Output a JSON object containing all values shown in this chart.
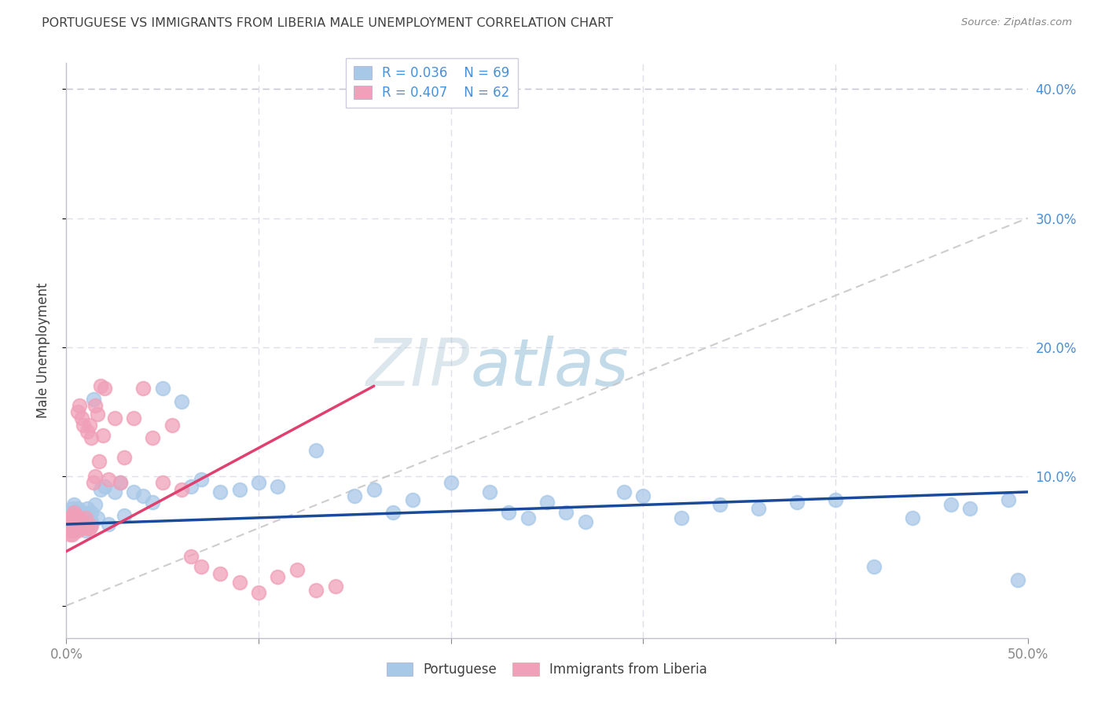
{
  "title": "PORTUGUESE VS IMMIGRANTS FROM LIBERIA MALE UNEMPLOYMENT CORRELATION CHART",
  "source": "Source: ZipAtlas.com",
  "ylabel": "Male Unemployment",
  "xlim": [
    0.0,
    0.5
  ],
  "ylim": [
    -0.025,
    0.42
  ],
  "watermark_zip": "ZIP",
  "watermark_atlas": "atlas",
  "legend1_r": "R = 0.036",
  "legend1_n": "N = 69",
  "legend2_r": "R = 0.407",
  "legend2_n": "N = 62",
  "blue_scatter_color": "#a8c8e8",
  "pink_scatter_color": "#f0a0b8",
  "blue_line_color": "#1a4a9a",
  "pink_line_color": "#e04070",
  "dashed_line_color": "#c8c8c8",
  "title_color": "#404040",
  "ylabel_color": "#404040",
  "tick_color_right": "#4a90d9",
  "grid_color": "#d8d8e8",
  "background_color": "#ffffff",
  "port_x": [
    0.001,
    0.002,
    0.002,
    0.003,
    0.003,
    0.003,
    0.004,
    0.004,
    0.004,
    0.005,
    0.005,
    0.005,
    0.006,
    0.006,
    0.007,
    0.007,
    0.008,
    0.009,
    0.01,
    0.01,
    0.011,
    0.012,
    0.013,
    0.013,
    0.014,
    0.015,
    0.016,
    0.018,
    0.02,
    0.022,
    0.025,
    0.028,
    0.03,
    0.035,
    0.04,
    0.045,
    0.05,
    0.06,
    0.065,
    0.07,
    0.08,
    0.09,
    0.1,
    0.11,
    0.13,
    0.15,
    0.16,
    0.17,
    0.18,
    0.2,
    0.22,
    0.23,
    0.24,
    0.25,
    0.26,
    0.27,
    0.29,
    0.3,
    0.32,
    0.34,
    0.36,
    0.38,
    0.4,
    0.42,
    0.44,
    0.46,
    0.47,
    0.49,
    0.495
  ],
  "port_y": [
    0.063,
    0.068,
    0.072,
    0.065,
    0.058,
    0.075,
    0.06,
    0.07,
    0.078,
    0.065,
    0.072,
    0.062,
    0.068,
    0.075,
    0.063,
    0.07,
    0.065,
    0.072,
    0.068,
    0.058,
    0.075,
    0.063,
    0.072,
    0.065,
    0.16,
    0.078,
    0.068,
    0.09,
    0.092,
    0.063,
    0.088,
    0.095,
    0.07,
    0.088,
    0.085,
    0.08,
    0.168,
    0.158,
    0.092,
    0.098,
    0.088,
    0.09,
    0.095,
    0.092,
    0.12,
    0.085,
    0.09,
    0.072,
    0.082,
    0.095,
    0.088,
    0.072,
    0.068,
    0.08,
    0.072,
    0.065,
    0.088,
    0.085,
    0.068,
    0.078,
    0.075,
    0.08,
    0.082,
    0.03,
    0.068,
    0.078,
    0.075,
    0.082,
    0.02
  ],
  "lib_x": [
    0.001,
    0.001,
    0.002,
    0.002,
    0.002,
    0.003,
    0.003,
    0.003,
    0.003,
    0.004,
    0.004,
    0.004,
    0.004,
    0.005,
    0.005,
    0.005,
    0.006,
    0.006,
    0.006,
    0.007,
    0.007,
    0.007,
    0.008,
    0.008,
    0.008,
    0.009,
    0.009,
    0.01,
    0.01,
    0.011,
    0.011,
    0.012,
    0.012,
    0.013,
    0.013,
    0.014,
    0.015,
    0.015,
    0.016,
    0.017,
    0.018,
    0.019,
    0.02,
    0.022,
    0.025,
    0.028,
    0.03,
    0.035,
    0.04,
    0.045,
    0.05,
    0.055,
    0.06,
    0.065,
    0.07,
    0.08,
    0.09,
    0.1,
    0.11,
    0.12,
    0.13,
    0.14
  ],
  "lib_y": [
    0.058,
    0.065,
    0.055,
    0.06,
    0.068,
    0.055,
    0.06,
    0.065,
    0.07,
    0.058,
    0.062,
    0.068,
    0.072,
    0.06,
    0.065,
    0.07,
    0.058,
    0.062,
    0.15,
    0.062,
    0.068,
    0.155,
    0.06,
    0.065,
    0.145,
    0.065,
    0.14,
    0.062,
    0.068,
    0.06,
    0.135,
    0.06,
    0.14,
    0.062,
    0.13,
    0.095,
    0.1,
    0.155,
    0.148,
    0.112,
    0.17,
    0.132,
    0.168,
    0.098,
    0.145,
    0.095,
    0.115,
    0.145,
    0.168,
    0.13,
    0.095,
    0.14,
    0.09,
    0.038,
    0.03,
    0.025,
    0.018,
    0.01,
    0.022,
    0.028,
    0.012,
    0.015
  ]
}
